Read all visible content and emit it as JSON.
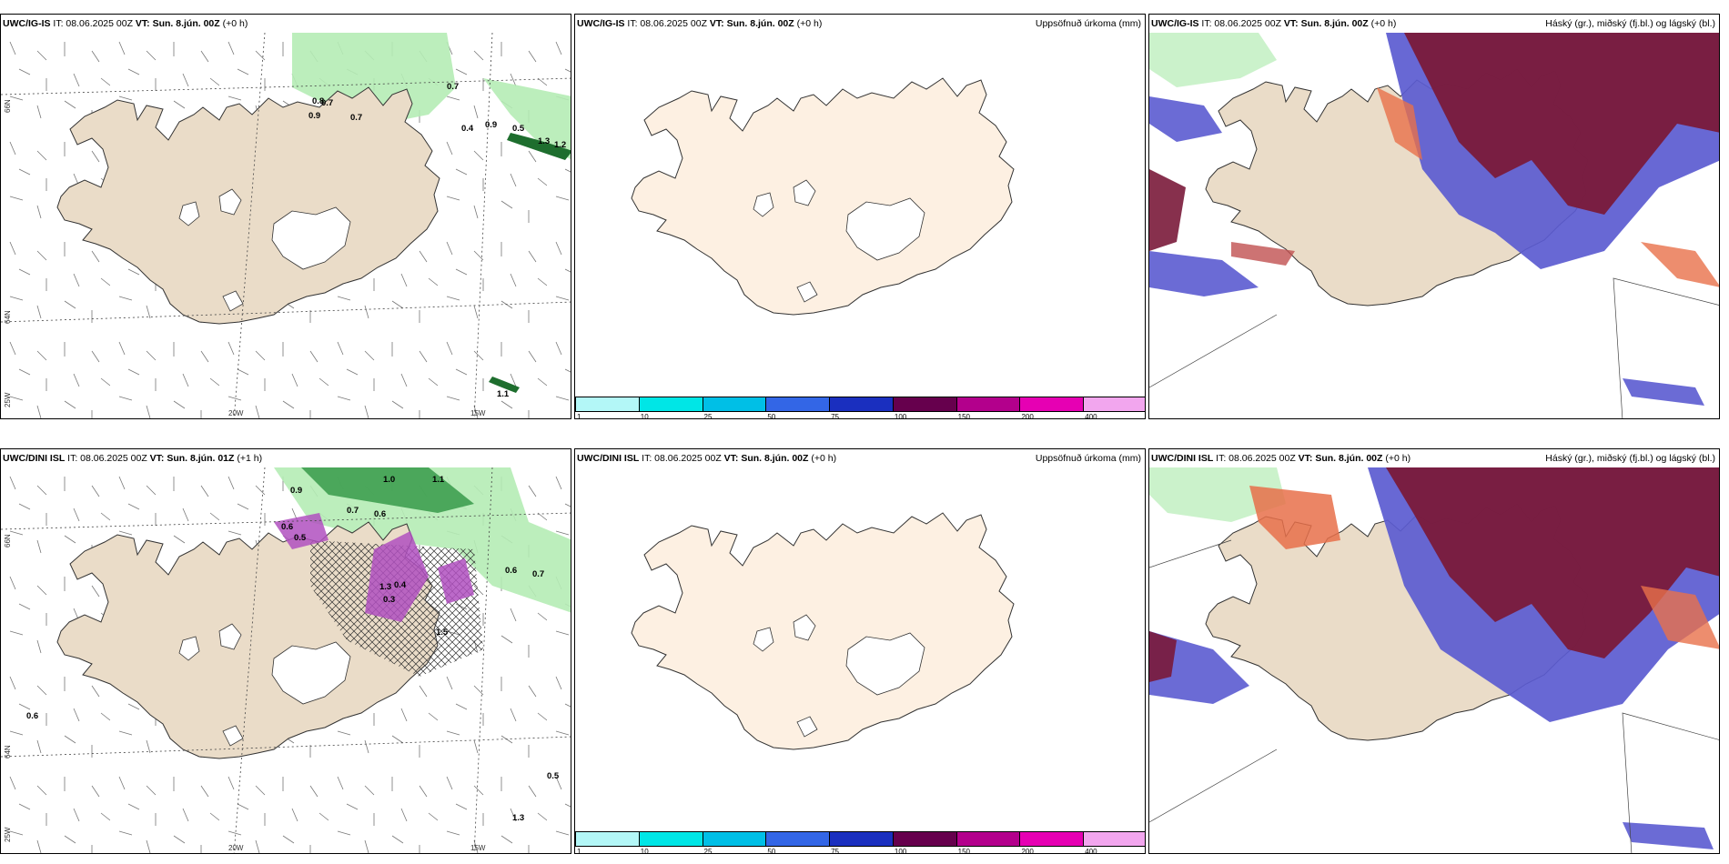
{
  "top_left": {
    "model": "UWC/IG-IS",
    "it_label": "IT: 08.06.2025 00Z",
    "vt_label": "VT: Sun. 8.jún. 00Z",
    "lead": "(+0 h)",
    "grid_labels": [
      "66N",
      "64N",
      "25W",
      "20W",
      "15W"
    ],
    "precip_labels": [
      "0.8",
      "0.7",
      "0.9",
      "0.7",
      "0.7",
      "0.4",
      "0.9",
      "0.5",
      "1.3",
      "1.2",
      "1.1"
    ]
  },
  "top_mid": {
    "model": "UWC/IG-IS",
    "it_label": "IT: 08.06.2025 00Z",
    "vt_label": "VT: Sun. 8.jún. 00Z",
    "lead": "(+0 h)",
    "field": "Uppsöfnuð úrkoma (mm)"
  },
  "top_right": {
    "model": "UWC/IG-IS",
    "it_label": "IT: 08.06.2025 00Z",
    "vt_label": "VT: Sun. 8.jún. 00Z",
    "lead": "(+0 h)",
    "field": "Háský (gr.), miðský (fj.bl.) og lágský (bl.)"
  },
  "bottom_left": {
    "model": "UWC/DINI ISL",
    "it_label": "IT: 08.06.2025 00Z",
    "vt_label": "VT: Sun. 8.jún. 01Z",
    "lead": "(+1 h)",
    "grid_labels": [
      "66N",
      "64N",
      "25W",
      "20W",
      "15W"
    ],
    "precip_labels": [
      "0.9",
      "1.0",
      "1.1",
      "0.7",
      "0.6",
      "0.6",
      "0.5",
      "1.3",
      "0.4",
      "1.5",
      "0.3",
      "0.6",
      "0.6",
      "0.7",
      "0.5",
      "1.3"
    ]
  },
  "bottom_mid": {
    "model": "UWC/DINI ISL",
    "it_label": "IT: 08.06.2025 00Z",
    "vt_label": "VT: Sun. 8.jún. 00Z",
    "lead": "(+0 h)",
    "field": "Uppsöfnuð úrkoma (mm)"
  },
  "bottom_right": {
    "model": "UWC/DINI ISL",
    "it_label": "IT: 08.06.2025 00Z",
    "vt_label": "VT: Sun. 8.jún. 00Z",
    "lead": "(+0 h)",
    "field": "Háský (gr.), miðský (fj.bl.) og lágský (bl.)"
  },
  "colorbar": {
    "ticks": [
      "1",
      "10",
      "25",
      "50",
      "75",
      "100",
      "150",
      "200",
      "400"
    ],
    "colors": [
      "#b3f7f7",
      "#00e6e6",
      "#00bfe6",
      "#3366e6",
      "#1a2fbf",
      "#66004d",
      "#b3008c",
      "#e600b3",
      "#f2a6ee"
    ]
  },
  "colors": {
    "land": "#eadcc8",
    "land_light": "#fdf0e2",
    "precip_green": "#b5ecb5",
    "cloud_high": "#7a1a3a",
    "cloud_mid": "#5b5bd0",
    "cloud_low": "#e8704a"
  }
}
